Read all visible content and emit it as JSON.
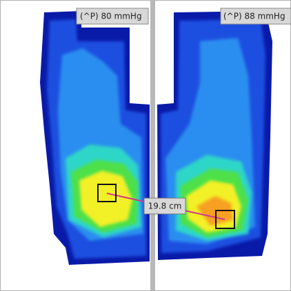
{
  "panels": [
    {
      "label": "(^P) 80 mmHg"
    },
    {
      "label": "(^P) 88 mmHg"
    }
  ],
  "measurement": {
    "label": "19.8 cm"
  }
}
